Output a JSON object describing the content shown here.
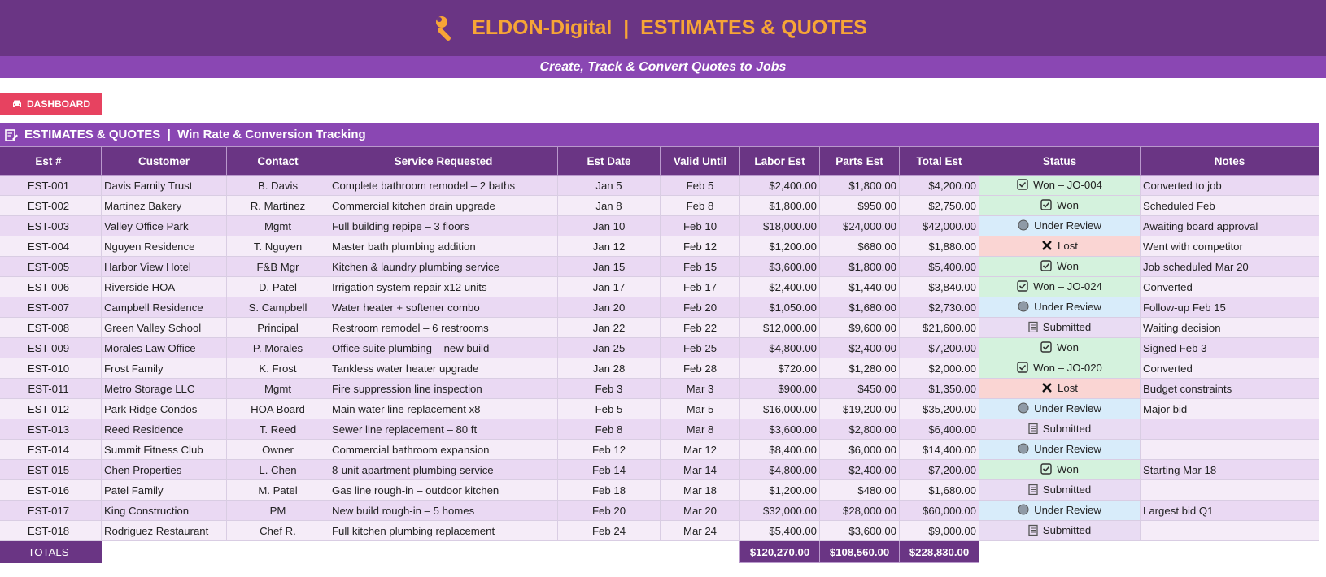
{
  "header": {
    "title": "ELDON-Digital  |  ESTIMATES & QUOTES",
    "subtitle": "Create, Track & Convert Quotes to Jobs"
  },
  "dashboard_button": {
    "label": "DASHBOARD",
    "icon": "car-icon"
  },
  "section": {
    "title": "ESTIMATES & QUOTES  |  Win Rate & Conversion Tracking",
    "icon": "edit-document-icon"
  },
  "columns": [
    "Est #",
    "Customer",
    "Contact",
    "Service Requested",
    "Est Date",
    "Valid Until",
    "Labor Est",
    "Parts Est",
    "Total Est",
    "Status",
    "Notes"
  ],
  "rows": [
    {
      "est": "EST-001",
      "customer": "Davis Family Trust",
      "contact": "B. Davis",
      "service": "Complete bathroom remodel – 2 baths",
      "date": "Jan 5",
      "valid": "Feb 5",
      "labor": "$2,400.00",
      "parts": "$1,800.00",
      "total": "$4,200.00",
      "status": "Won – JO-004",
      "kind": "won",
      "notes": "Converted to job"
    },
    {
      "est": "EST-002",
      "customer": "Martinez Bakery",
      "contact": "R. Martinez",
      "service": "Commercial kitchen drain upgrade",
      "date": "Jan 8",
      "valid": "Feb 8",
      "labor": "$1,800.00",
      "parts": "$950.00",
      "total": "$2,750.00",
      "status": "Won",
      "kind": "won",
      "notes": "Scheduled Feb"
    },
    {
      "est": "EST-003",
      "customer": "Valley Office Park",
      "contact": "Mgmt",
      "service": "Full building repipe – 3 floors",
      "date": "Jan 10",
      "valid": "Feb 10",
      "labor": "$18,000.00",
      "parts": "$24,000.00",
      "total": "$42,000.00",
      "status": "Under Review",
      "kind": "rev",
      "notes": "Awaiting board approval"
    },
    {
      "est": "EST-004",
      "customer": "Nguyen Residence",
      "contact": "T. Nguyen",
      "service": "Master bath plumbing addition",
      "date": "Jan 12",
      "valid": "Feb 12",
      "labor": "$1,200.00",
      "parts": "$680.00",
      "total": "$1,880.00",
      "status": "Lost",
      "kind": "lost",
      "notes": "Went with competitor"
    },
    {
      "est": "EST-005",
      "customer": "Harbor View Hotel",
      "contact": "F&B Mgr",
      "service": "Kitchen & laundry plumbing service",
      "date": "Jan 15",
      "valid": "Feb 15",
      "labor": "$3,600.00",
      "parts": "$1,800.00",
      "total": "$5,400.00",
      "status": "Won",
      "kind": "won",
      "notes": "Job scheduled Mar 20"
    },
    {
      "est": "EST-006",
      "customer": "Riverside HOA",
      "contact": "D. Patel",
      "service": "Irrigation system repair x12 units",
      "date": "Jan 17",
      "valid": "Feb 17",
      "labor": "$2,400.00",
      "parts": "$1,440.00",
      "total": "$3,840.00",
      "status": "Won – JO-024",
      "kind": "won",
      "notes": "Converted"
    },
    {
      "est": "EST-007",
      "customer": "Campbell Residence",
      "contact": "S. Campbell",
      "service": "Water heater + softener combo",
      "date": "Jan 20",
      "valid": "Feb 20",
      "labor": "$1,050.00",
      "parts": "$1,680.00",
      "total": "$2,730.00",
      "status": "Under Review",
      "kind": "rev",
      "notes": "Follow-up Feb 15"
    },
    {
      "est": "EST-008",
      "customer": "Green Valley School",
      "contact": "Principal",
      "service": "Restroom remodel – 6 restrooms",
      "date": "Jan 22",
      "valid": "Feb 22",
      "labor": "$12,000.00",
      "parts": "$9,600.00",
      "total": "$21,600.00",
      "status": "Submitted",
      "kind": "sub",
      "notes": "Waiting decision"
    },
    {
      "est": "EST-009",
      "customer": "Morales Law Office",
      "contact": "P. Morales",
      "service": "Office suite plumbing – new build",
      "date": "Jan 25",
      "valid": "Feb 25",
      "labor": "$4,800.00",
      "parts": "$2,400.00",
      "total": "$7,200.00",
      "status": "Won",
      "kind": "won",
      "notes": "Signed Feb 3"
    },
    {
      "est": "EST-010",
      "customer": "Frost Family",
      "contact": "K. Frost",
      "service": "Tankless water heater upgrade",
      "date": "Jan 28",
      "valid": "Feb 28",
      "labor": "$720.00",
      "parts": "$1,280.00",
      "total": "$2,000.00",
      "status": "Won – JO-020",
      "kind": "won",
      "notes": "Converted"
    },
    {
      "est": "EST-011",
      "customer": "Metro Storage LLC",
      "contact": "Mgmt",
      "service": "Fire suppression line inspection",
      "date": "Feb 3",
      "valid": "Mar 3",
      "labor": "$900.00",
      "parts": "$450.00",
      "total": "$1,350.00",
      "status": "Lost",
      "kind": "lost",
      "notes": "Budget constraints"
    },
    {
      "est": "EST-012",
      "customer": "Park Ridge Condos",
      "contact": "HOA Board",
      "service": "Main water line replacement x8",
      "date": "Feb 5",
      "valid": "Mar 5",
      "labor": "$16,000.00",
      "parts": "$19,200.00",
      "total": "$35,200.00",
      "status": "Under Review",
      "kind": "rev",
      "notes": "Major bid"
    },
    {
      "est": "EST-013",
      "customer": "Reed Residence",
      "contact": "T. Reed",
      "service": "Sewer line replacement – 80 ft",
      "date": "Feb 8",
      "valid": "Mar 8",
      "labor": "$3,600.00",
      "parts": "$2,800.00",
      "total": "$6,400.00",
      "status": "Submitted",
      "kind": "sub",
      "notes": ""
    },
    {
      "est": "EST-014",
      "customer": "Summit Fitness Club",
      "contact": "Owner",
      "service": "Commercial bathroom expansion",
      "date": "Feb 12",
      "valid": "Mar 12",
      "labor": "$8,400.00",
      "parts": "$6,000.00",
      "total": "$14,400.00",
      "status": "Under Review",
      "kind": "rev",
      "notes": ""
    },
    {
      "est": "EST-015",
      "customer": "Chen Properties",
      "contact": "L. Chen",
      "service": "8-unit apartment plumbing service",
      "date": "Feb 14",
      "valid": "Mar 14",
      "labor": "$4,800.00",
      "parts": "$2,400.00",
      "total": "$7,200.00",
      "status": "Won",
      "kind": "won",
      "notes": "Starting Mar 18"
    },
    {
      "est": "EST-016",
      "customer": "Patel Family",
      "contact": "M. Patel",
      "service": "Gas line rough-in – outdoor kitchen",
      "date": "Feb 18",
      "valid": "Mar 18",
      "labor": "$1,200.00",
      "parts": "$480.00",
      "total": "$1,680.00",
      "status": "Submitted",
      "kind": "sub",
      "notes": ""
    },
    {
      "est": "EST-017",
      "customer": "King Construction",
      "contact": "PM",
      "service": "New build rough-in – 5 homes",
      "date": "Feb 20",
      "valid": "Mar 20",
      "labor": "$32,000.00",
      "parts": "$28,000.00",
      "total": "$60,000.00",
      "status": "Under Review",
      "kind": "rev",
      "notes": "Largest bid Q1"
    },
    {
      "est": "EST-018",
      "customer": "Rodriguez Restaurant",
      "contact": "Chef R.",
      "service": "Full kitchen plumbing replacement",
      "date": "Feb 24",
      "valid": "Mar 24",
      "labor": "$5,400.00",
      "parts": "$3,600.00",
      "total": "$9,000.00",
      "status": "Submitted",
      "kind": "sub",
      "notes": ""
    }
  ],
  "totals": {
    "label": "TOTALS",
    "labor": "$120,270.00",
    "parts": "$108,560.00",
    "total": "$228,830.00"
  },
  "colors": {
    "header": "#6a3584",
    "accent": "#f7a536",
    "subheader": "#8a47b3",
    "button": "#e74260"
  }
}
